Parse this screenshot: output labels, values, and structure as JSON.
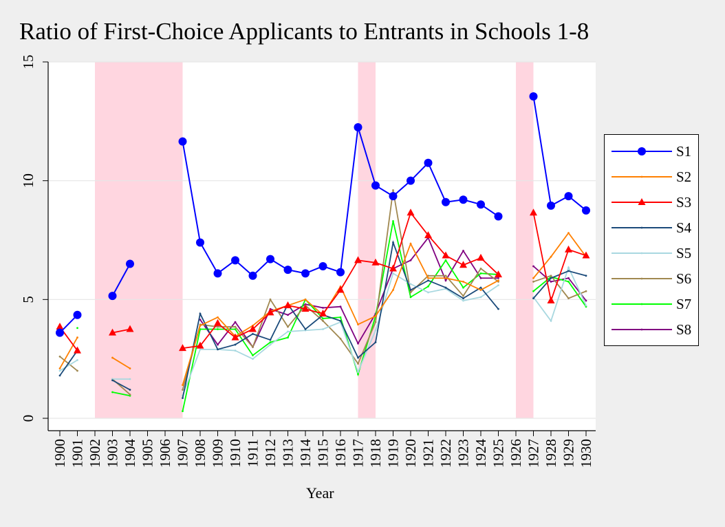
{
  "chart_data": {
    "type": "line",
    "title": "Ratio of First-Choice Applicants to Entrants in Schools 1-8",
    "xlabel": "Year",
    "ylabel": "",
    "x": [
      1900,
      1901,
      1902,
      1903,
      1904,
      1905,
      1906,
      1907,
      1908,
      1909,
      1910,
      1911,
      1912,
      1913,
      1914,
      1915,
      1916,
      1917,
      1918,
      1919,
      1920,
      1921,
      1922,
      1923,
      1924,
      1925,
      1926,
      1927,
      1928,
      1929,
      1930
    ],
    "ylim": [
      0,
      15
    ],
    "yticks": [
      "0",
      "5",
      "10",
      "15"
    ],
    "shaded_bands": [
      [
        1902,
        1907
      ],
      [
        1917,
        1918
      ],
      [
        1926,
        1927
      ]
    ],
    "grid": true,
    "legend_position": "right",
    "series": [
      {
        "name": "S1",
        "color": "#0000ff",
        "marker": "circle",
        "values": [
          3.6,
          4.35,
          null,
          5.15,
          6.5,
          null,
          null,
          11.65,
          7.4,
          6.1,
          6.65,
          6.0,
          6.7,
          6.25,
          6.1,
          6.4,
          6.15,
          12.25,
          9.8,
          9.35,
          10.0,
          10.75,
          9.1,
          9.2,
          9.0,
          8.5,
          null,
          13.55,
          8.95,
          9.35,
          8.75
        ]
      },
      {
        "name": "S2",
        "color": "#ff8000",
        "marker": "dot",
        "values": [
          2.1,
          3.4,
          null,
          2.55,
          2.1,
          null,
          null,
          1.4,
          3.9,
          4.25,
          3.45,
          3.9,
          4.5,
          4.75,
          5.0,
          4.35,
          5.55,
          3.95,
          4.3,
          5.4,
          7.35,
          5.9,
          5.9,
          5.75,
          5.4,
          5.8,
          null,
          5.9,
          6.8,
          7.8,
          6.8
        ]
      },
      {
        "name": "S3",
        "color": "#ff0000",
        "marker": "triangle",
        "values": [
          3.85,
          2.85,
          null,
          3.6,
          3.75,
          null,
          null,
          2.95,
          3.05,
          4.0,
          3.4,
          3.75,
          4.45,
          4.75,
          4.6,
          4.4,
          5.4,
          6.65,
          6.55,
          6.3,
          8.65,
          7.7,
          6.85,
          6.45,
          6.75,
          6.05,
          null,
          8.65,
          4.95,
          7.1,
          6.85
        ]
      },
      {
        "name": "S4",
        "color": "#1a4a7a",
        "marker": "dot",
        "values": [
          1.8,
          2.85,
          null,
          1.6,
          1.2,
          null,
          null,
          0.85,
          4.4,
          2.9,
          3.1,
          3.55,
          3.3,
          4.8,
          3.75,
          4.35,
          4.1,
          2.55,
          3.2,
          7.4,
          5.4,
          5.8,
          5.5,
          5.05,
          5.5,
          4.6,
          null,
          5.05,
          5.9,
          6.2,
          6.0
        ]
      },
      {
        "name": "S5",
        "color": "#a8d8e0",
        "marker": "dot",
        "values": [
          2.0,
          2.45,
          null,
          1.65,
          1.65,
          null,
          null,
          0.95,
          2.9,
          2.9,
          2.85,
          2.5,
          3.1,
          3.65,
          3.7,
          3.75,
          4.05,
          1.95,
          3.7,
          6.1,
          5.65,
          5.3,
          5.45,
          4.95,
          5.1,
          5.6,
          null,
          5.1,
          4.1,
          6.35,
          4.75
        ]
      },
      {
        "name": "S6",
        "color": "#a08850",
        "marker": "dot",
        "values": [
          2.6,
          2.0,
          null,
          1.65,
          1.0,
          null,
          null,
          1.2,
          3.95,
          3.85,
          3.85,
          3.0,
          5.0,
          3.85,
          4.75,
          4.1,
          3.35,
          2.3,
          4.05,
          9.6,
          5.3,
          6.0,
          6.0,
          5.15,
          6.3,
          5.75,
          null,
          5.75,
          6.0,
          5.05,
          5.35
        ]
      },
      {
        "name": "S7",
        "color": "#00ff00",
        "marker": "dot",
        "values": [
          null,
          3.8,
          null,
          1.1,
          0.95,
          null,
          null,
          0.3,
          3.75,
          3.75,
          3.75,
          2.65,
          3.2,
          3.4,
          5.0,
          4.2,
          4.25,
          1.85,
          4.3,
          8.3,
          5.1,
          5.55,
          6.65,
          5.5,
          6.1,
          6.05,
          null,
          5.35,
          5.95,
          5.75,
          4.7
        ]
      },
      {
        "name": "S8",
        "color": "#800080",
        "marker": "dot",
        "values": [
          null,
          null,
          null,
          null,
          null,
          null,
          null,
          null,
          4.15,
          3.1,
          4.05,
          3.0,
          4.6,
          4.35,
          4.8,
          4.65,
          4.7,
          3.15,
          4.4,
          6.3,
          6.65,
          7.6,
          5.8,
          7.05,
          5.9,
          5.9,
          null,
          6.4,
          5.75,
          5.9,
          4.95
        ]
      }
    ]
  }
}
